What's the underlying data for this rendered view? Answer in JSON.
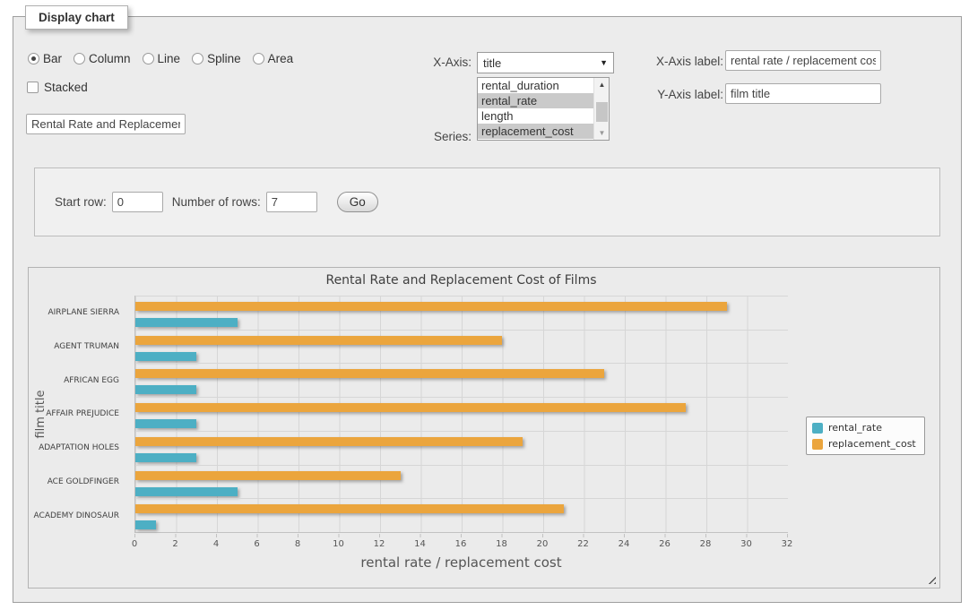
{
  "panel": {
    "legend": "Display chart"
  },
  "chart_type": {
    "options": [
      {
        "label": "Bar",
        "selected": true
      },
      {
        "label": "Column",
        "selected": false
      },
      {
        "label": "Line",
        "selected": false
      },
      {
        "label": "Spline",
        "selected": false
      },
      {
        "label": "Area",
        "selected": false
      }
    ]
  },
  "stacked": {
    "label": "Stacked",
    "checked": false
  },
  "title_input": {
    "value": "Rental Rate and Replacement Cost of Films"
  },
  "x_axis_select": {
    "label": "X-Axis:",
    "value": "title"
  },
  "series_select": {
    "label": "Series:",
    "options": [
      {
        "label": "rental_duration",
        "selected": false
      },
      {
        "label": "rental_rate",
        "selected": true
      },
      {
        "label": "length",
        "selected": false
      },
      {
        "label": "replacement_cost",
        "selected": true
      }
    ]
  },
  "x_axis_label": {
    "label": "X-Axis label:",
    "value": "rental rate / replacement cost"
  },
  "y_axis_label": {
    "label": "Y-Axis label:",
    "value": "film title"
  },
  "rows_controls": {
    "start_row_label": "Start row:",
    "start_row_value": "0",
    "num_rows_label": "Number of rows:",
    "num_rows_value": "7",
    "go_label": "Go"
  },
  "icons": {
    "dropdown_arrow": "▼",
    "scroll_up": "▲",
    "scroll_down": "▼"
  },
  "chart_data": {
    "type": "bar",
    "title": "Rental Rate and Replacement Cost of Films",
    "xlabel": "rental rate / replacement cost",
    "ylabel": "film title",
    "categories": [
      "AIRPLANE SIERRA",
      "AGENT TRUMAN",
      "AFRICAN EGG",
      "AFFAIR PREJUDICE",
      "ADAPTATION HOLES",
      "ACE GOLDFINGER",
      "ACADEMY DINOSAUR"
    ],
    "series": [
      {
        "name": "rental_rate",
        "color": "#4DAFC4",
        "values": [
          4.99,
          2.99,
          2.99,
          2.99,
          2.99,
          4.99,
          0.99
        ]
      },
      {
        "name": "replacement_cost",
        "color": "#EBA53D",
        "values": [
          28.99,
          17.99,
          22.99,
          26.99,
          18.99,
          12.99,
          20.99
        ]
      }
    ],
    "xlim": [
      0,
      32
    ],
    "xticks": [
      0,
      2,
      4,
      6,
      8,
      10,
      12,
      14,
      16,
      18,
      20,
      22,
      24,
      26,
      28,
      30,
      32
    ],
    "grid": true,
    "legend_position": "right",
    "bar_order_top_to_bottom": [
      "replacement_cost",
      "rental_rate"
    ]
  }
}
